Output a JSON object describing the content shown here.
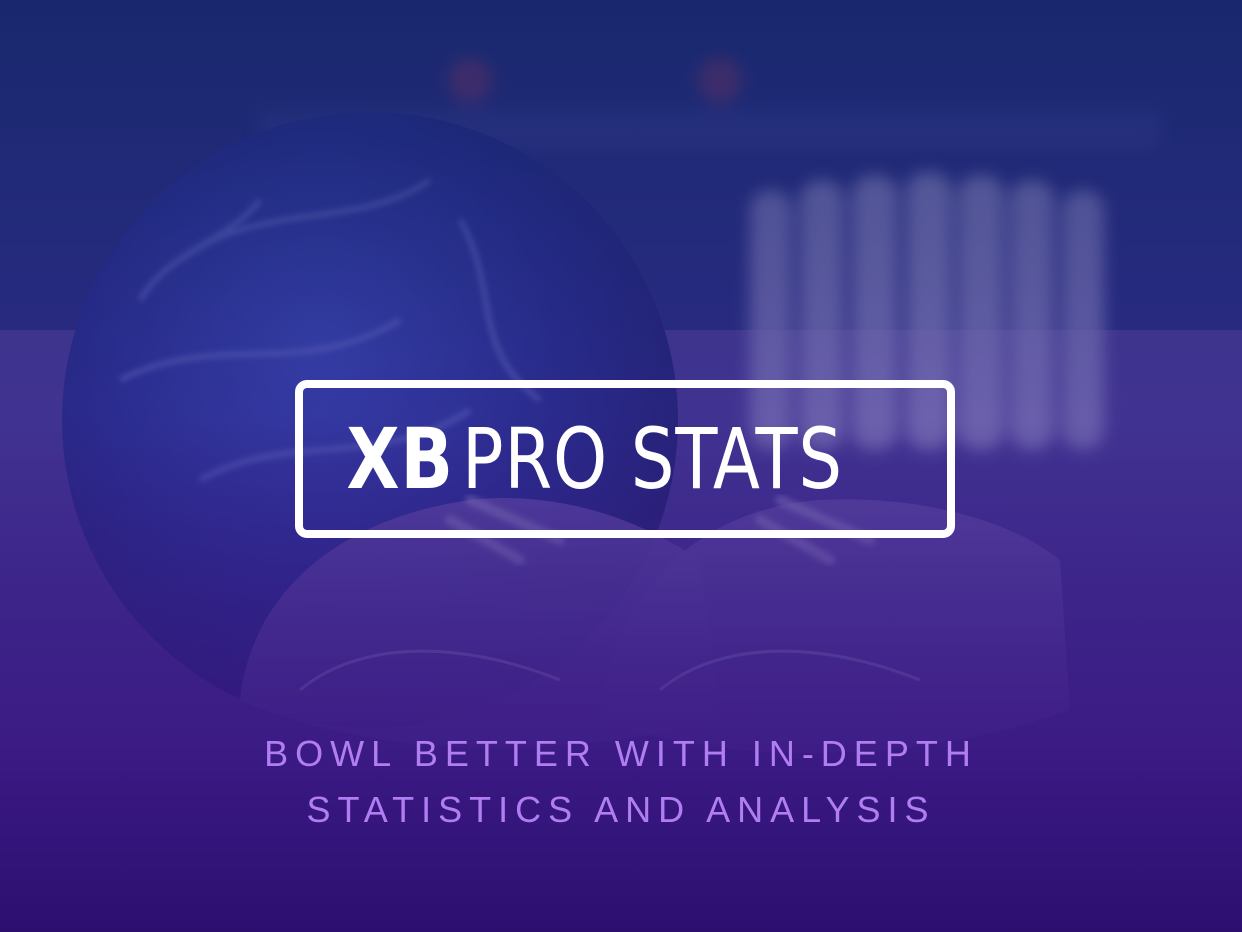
{
  "logo": {
    "bold_text": "XB",
    "light_text": "PRO STATS",
    "border_color": "#ffffff"
  },
  "tagline": {
    "line1": "BOWL BETTER WITH IN-DEPTH",
    "line2": "STATISTICS AND ANALYSIS",
    "color": "#b07df2"
  },
  "background": {
    "depicts": [
      "bowling-ball",
      "bowling-shoes",
      "bowling-pins"
    ],
    "overlay_top": "#162669",
    "overlay_bottom": "#2c0e70"
  }
}
